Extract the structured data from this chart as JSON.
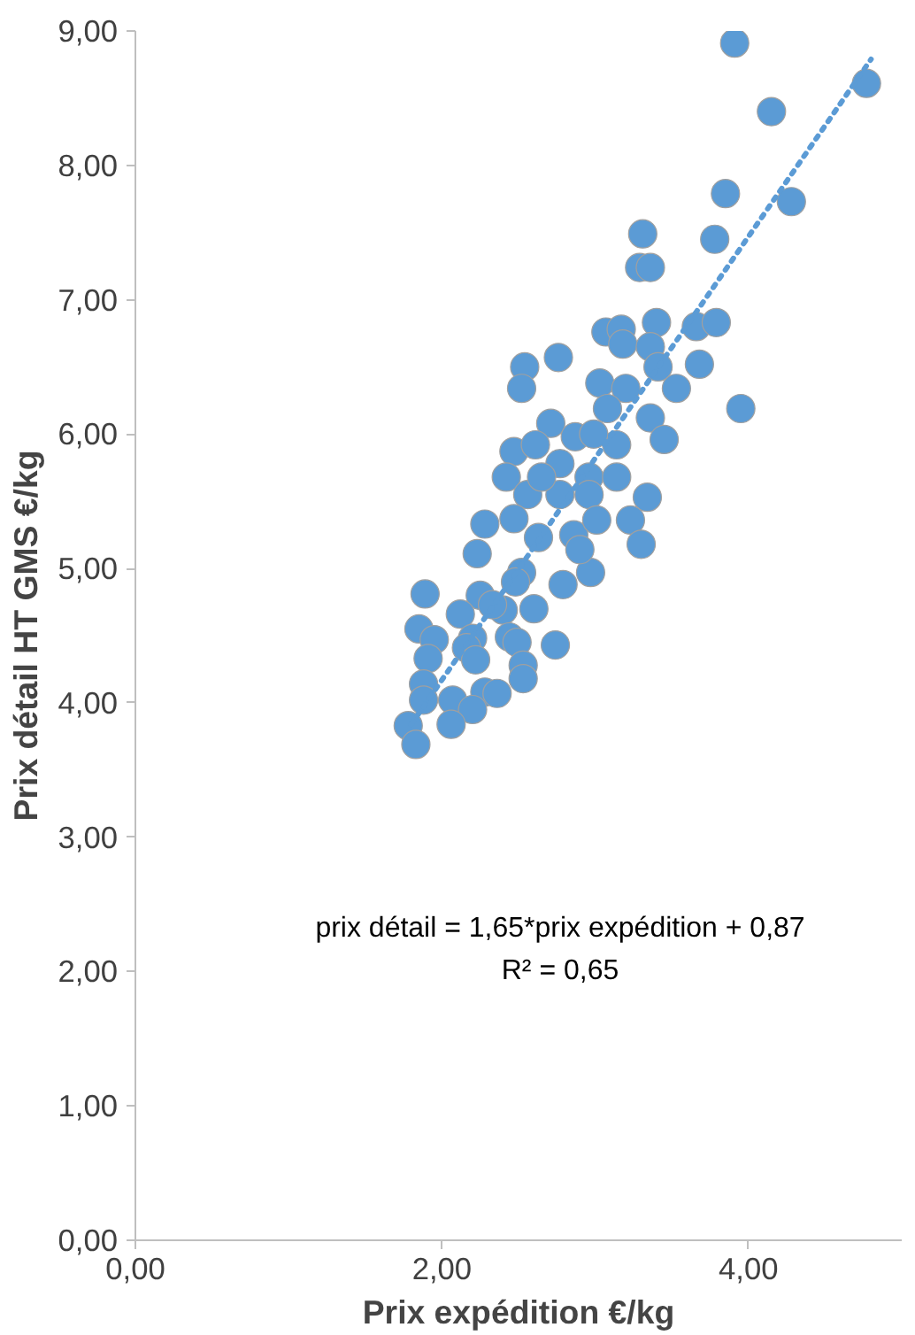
{
  "chart_data": {
    "type": "scatter",
    "xlabel": "Prix expédition €/kg",
    "ylabel": "Prix détail HT GMS €/kg",
    "xlim": [
      0,
      5
    ],
    "ylim": [
      0,
      9
    ],
    "xticks": [
      {
        "value": 0,
        "label": "0,00"
      },
      {
        "value": 2,
        "label": "2,00"
      },
      {
        "value": 4,
        "label": "4,00"
      }
    ],
    "yticks": [
      {
        "value": 0,
        "label": "0,00"
      },
      {
        "value": 1,
        "label": "1,00"
      },
      {
        "value": 2,
        "label": "2,00"
      },
      {
        "value": 3,
        "label": "3,00"
      },
      {
        "value": 4,
        "label": "4,00"
      },
      {
        "value": 5,
        "label": "5,00"
      },
      {
        "value": 6,
        "label": "6,00"
      },
      {
        "value": 7,
        "label": "7,00"
      },
      {
        "value": 8,
        "label": "8,00"
      },
      {
        "value": 9,
        "label": "9,00"
      }
    ],
    "grid": false,
    "marker": "circle",
    "annotations": [
      "prix détail = 1,65*prix expédition + 0,87",
      "R² = 0,65"
    ],
    "series": [
      {
        "color": "#5b9bd5",
        "x": [
          3.91,
          4.77,
          4.15,
          4.28,
          3.85,
          3.78,
          3.31,
          3.29,
          3.36,
          3.07,
          3.17,
          3.18,
          3.4,
          3.36,
          3.66,
          3.79,
          3.68,
          2.54,
          2.76,
          2.52,
          3.03,
          3.2,
          3.41,
          3.53,
          3.95,
          3.08,
          2.71,
          3.36,
          3.14,
          3.45,
          2.47,
          2.61,
          2.87,
          2.99,
          2.42,
          2.77,
          2.96,
          3.14,
          2.56,
          2.77,
          2.96,
          3.34,
          2.28,
          2.47,
          2.63,
          2.86,
          3.01,
          3.23,
          3.3,
          2.23,
          2.52,
          2.48,
          2.79,
          2.97,
          1.89,
          2.25,
          2.12,
          2.4,
          2.6,
          1.85,
          1.95,
          2.2,
          2.44,
          2.74,
          2.16,
          2.49,
          1.91,
          2.22,
          2.53,
          1.88,
          2.28,
          2.53,
          1.88,
          2.07,
          2.2,
          2.06,
          1.78,
          1.83,
          2.36,
          2.33,
          2.9,
          2.65
        ],
        "values": [
          8.91,
          8.61,
          8.4,
          7.73,
          7.79,
          7.45,
          7.49,
          7.24,
          7.24,
          6.76,
          6.78,
          6.67,
          6.83,
          6.65,
          6.8,
          6.83,
          6.52,
          6.5,
          6.57,
          6.34,
          6.38,
          6.34,
          6.5,
          6.34,
          6.19,
          6.19,
          6.08,
          6.12,
          5.92,
          5.96,
          5.87,
          5.92,
          5.98,
          6.0,
          5.68,
          5.78,
          5.68,
          5.68,
          5.55,
          5.55,
          5.55,
          5.53,
          5.33,
          5.37,
          5.23,
          5.25,
          5.36,
          5.36,
          5.18,
          5.11,
          4.97,
          4.9,
          4.88,
          4.97,
          4.81,
          4.8,
          4.66,
          4.69,
          4.7,
          4.55,
          4.47,
          4.48,
          4.49,
          4.43,
          4.41,
          4.45,
          4.33,
          4.32,
          4.28,
          4.14,
          4.08,
          4.18,
          4.02,
          4.02,
          3.95,
          3.84,
          3.83,
          3.69,
          4.07,
          4.73,
          5.14,
          5.68
        ]
      },
      {
        "type": "line",
        "color": "#5b9bd5",
        "line_style": "dotted",
        "marker": "none",
        "x": [
          1.8,
          4.8
        ],
        "values": [
          3.84,
          8.79
        ]
      }
    ]
  }
}
